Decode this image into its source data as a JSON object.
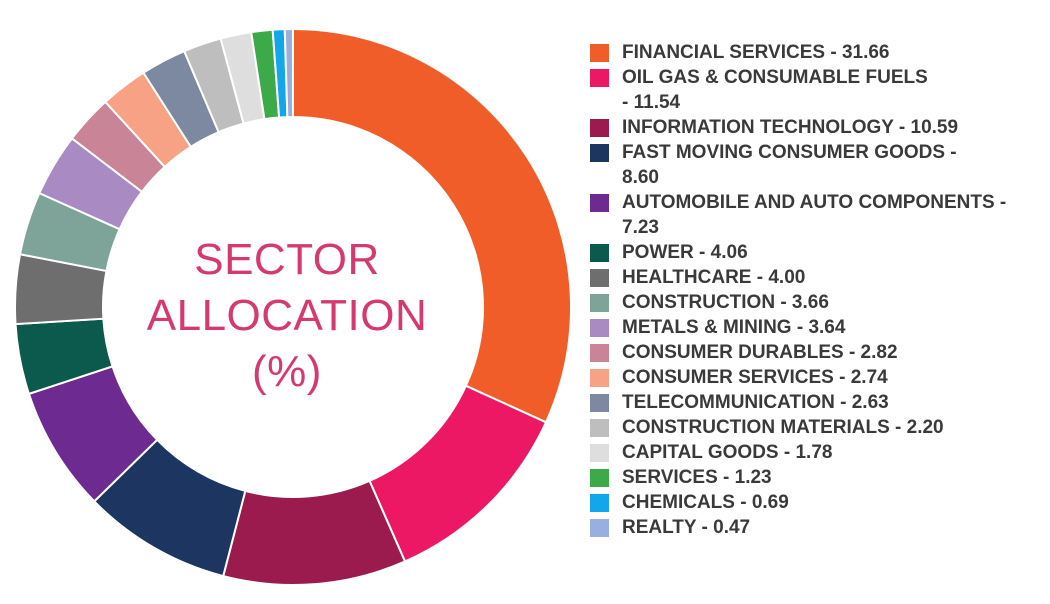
{
  "chart_data": {
    "type": "pie",
    "title": "SECTOR ALLOCATION (%)",
    "title_lines": [
      "SECTOR",
      "ALLOCATION",
      "(%)"
    ],
    "legend_position": "right",
    "series": [
      {
        "name": "FINANCIAL SERVICES",
        "value": 31.66,
        "color": "#f15d28",
        "legend_text": "FINANCIAL SERVICES - 31.66"
      },
      {
        "name": "OIL GAS & CONSUMABLE FUELS",
        "value": 11.54,
        "color": "#ec1864",
        "legend_lines": [
          "OIL GAS & CONSUMABLE FUELS",
          "- 11.54"
        ]
      },
      {
        "name": "INFORMATION TECHNOLOGY",
        "value": 10.59,
        "color": "#9b1b4e",
        "legend_text": "INFORMATION TECHNOLOGY - 10.59"
      },
      {
        "name": "FAST MOVING CONSUMER GOODS",
        "value": 8.6,
        "color": "#1c3561",
        "legend_lines": [
          "FAST MOVING CONSUMER GOODS -",
          "8.60"
        ]
      },
      {
        "name": "AUTOMOBILE AND AUTO COMPONENTS",
        "value": 7.23,
        "color": "#6d2a91",
        "legend_lines": [
          "AUTOMOBILE AND AUTO COMPONENTS -",
          "7.23"
        ]
      },
      {
        "name": "POWER",
        "value": 4.06,
        "color": "#0b5a4d",
        "legend_text": "POWER - 4.06"
      },
      {
        "name": "HEALTHCARE",
        "value": 4.0,
        "color": "#6e6e6e",
        "legend_text": "HEALTHCARE - 4.00"
      },
      {
        "name": "CONSTRUCTION",
        "value": 3.66,
        "color": "#7ea399",
        "legend_text": "CONSTRUCTION - 3.66"
      },
      {
        "name": "METALS & MINING",
        "value": 3.64,
        "color": "#a98ac2",
        "legend_text": "METALS & MINING - 3.64"
      },
      {
        "name": "CONSUMER DURABLES",
        "value": 2.82,
        "color": "#c98497",
        "legend_text": "CONSUMER DURABLES - 2.82"
      },
      {
        "name": "CONSUMER SERVICES",
        "value": 2.74,
        "color": "#f7a185",
        "legend_text": "CONSUMER SERVICES - 2.74"
      },
      {
        "name": "TELECOMMUNICATION",
        "value": 2.63,
        "color": "#7d88a1",
        "legend_text": "TELECOMMUNICATION - 2.63"
      },
      {
        "name": "CONSTRUCTION MATERIALS",
        "value": 2.2,
        "color": "#bebebe",
        "legend_text": "CONSTRUCTION MATERIALS - 2.20"
      },
      {
        "name": "CAPITAL GOODS",
        "value": 1.78,
        "color": "#dedede",
        "legend_text": "CAPITAL GOODS - 1.78"
      },
      {
        "name": "SERVICES",
        "value": 1.23,
        "color": "#3daa4a",
        "legend_text": "SERVICES  - 1.23"
      },
      {
        "name": "CHEMICALS",
        "value": 0.69,
        "color": "#12a7ea",
        "legend_text": "CHEMICALS - 0.69"
      },
      {
        "name": "REALTY",
        "value": 0.47,
        "color": "#98afdf",
        "legend_text": "REALTY  - 0.47"
      }
    ]
  }
}
